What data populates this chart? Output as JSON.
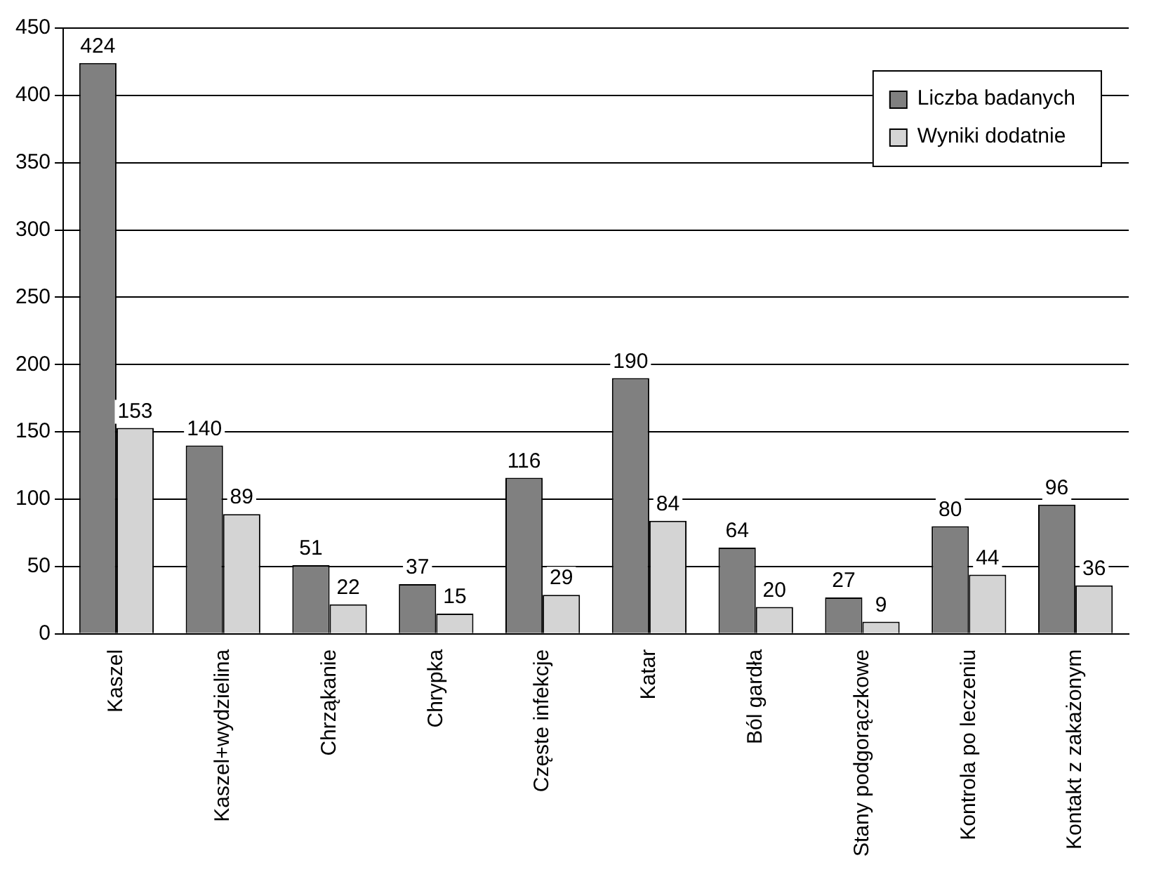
{
  "chart_data": {
    "type": "bar",
    "categories": [
      "Kaszel",
      "Kaszel+wydzielina",
      "Chrząkanie",
      "Chrypka",
      "Częste infekcje",
      "Katar",
      "Ból gardła",
      "Stany podgorączkowe",
      "Kontrola po leczeniu",
      "Kontakt z zakażonym"
    ],
    "series": [
      {
        "name": "Liczba badanych",
        "color": "#808080",
        "values": [
          424,
          140,
          51,
          37,
          116,
          190,
          64,
          27,
          80,
          96
        ]
      },
      {
        "name": "Wyniki dodatnie",
        "color": "#d4d4d4",
        "values": [
          153,
          89,
          22,
          15,
          29,
          84,
          20,
          9,
          44,
          36
        ]
      }
    ],
    "ylim": [
      0,
      450
    ],
    "yticks": [
      0,
      50,
      100,
      150,
      200,
      250,
      300,
      350,
      400,
      450
    ],
    "grid": "y",
    "legend": "top right",
    "data_labels": true
  }
}
